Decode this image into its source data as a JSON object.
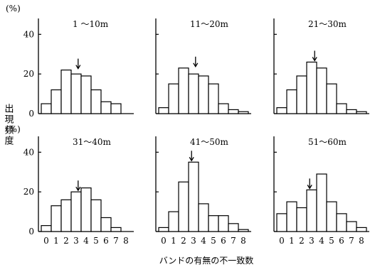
{
  "chart_data": {
    "type": "bar",
    "y_unit": "(%)",
    "ylabel": "出現頻度",
    "xlabel": "バンドの有無の不一致数",
    "x_ticks": [
      "0",
      "1",
      "2",
      "3",
      "4",
      "5",
      "6",
      "7",
      "8"
    ],
    "y_ticks": [
      "0",
      "20",
      "40"
    ],
    "ylim": [
      0,
      48
    ],
    "panels": [
      {
        "title": "1 ～10m",
        "values": [
          5,
          12,
          22,
          20,
          19,
          12,
          6,
          5,
          0
        ],
        "arrow_at": 3.2
      },
      {
        "title": "11～20m",
        "values": [
          3,
          15,
          23,
          20,
          19,
          15,
          5,
          2,
          1
        ],
        "arrow_at": 3.2
      },
      {
        "title": "21～30m",
        "values": [
          3,
          12,
          19,
          26,
          23,
          15,
          5,
          2,
          1
        ],
        "arrow_at": 3.3
      },
      {
        "title": "31～40m",
        "values": [
          3,
          13,
          16,
          20,
          22,
          16,
          7,
          2,
          0
        ],
        "arrow_at": 3.2
      },
      {
        "title": "41～50m",
        "values": [
          2,
          10,
          25,
          35,
          14,
          8,
          8,
          4,
          1
        ],
        "arrow_at": 2.8
      },
      {
        "title": "51～60m",
        "values": [
          9,
          15,
          12,
          21,
          29,
          15,
          9,
          5,
          2
        ],
        "arrow_at": 2.8
      }
    ]
  }
}
